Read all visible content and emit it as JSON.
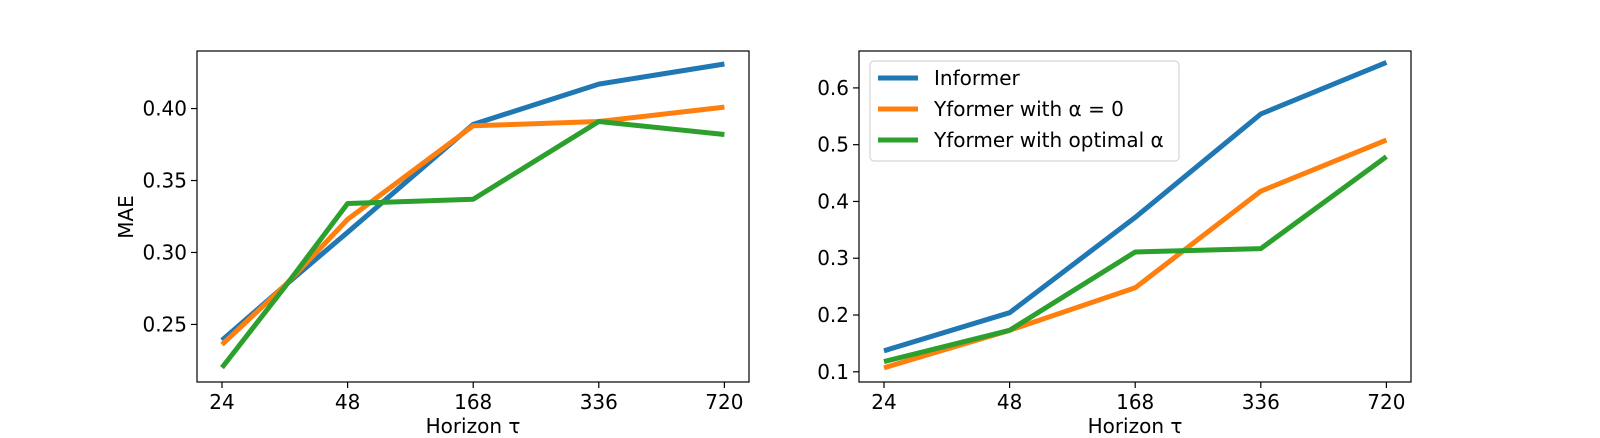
{
  "chart_data": [
    {
      "type": "line",
      "x": [
        "24",
        "48",
        "168",
        "336",
        "720"
      ],
      "xlabel": "Horizon τ",
      "ylabel": "MAE",
      "ylim": [
        0.21,
        0.44
      ],
      "yticks": [
        "0.25",
        "0.30",
        "0.35",
        "0.40"
      ],
      "ytick_values": [
        0.25,
        0.3,
        0.35,
        0.4
      ],
      "grid": false,
      "series": [
        {
          "key": "informer",
          "color": "#1f77b4",
          "points": [
            [
              0,
              0.239
            ],
            [
              0.5,
              0.277
            ],
            [
              1,
              0.314
            ],
            [
              2,
              0.389
            ],
            [
              3,
              0.417
            ],
            [
              4,
              0.431
            ]
          ]
        },
        {
          "key": "yformer-alpha0",
          "color": "#ff7f0e",
          "points": [
            [
              0,
              0.236
            ],
            [
              0.5,
              0.277
            ],
            [
              1,
              0.323
            ],
            [
              2,
              0.388
            ],
            [
              3,
              0.391
            ],
            [
              4,
              0.401
            ]
          ]
        },
        {
          "key": "yformer-optimal",
          "color": "#2ca02c",
          "points": [
            [
              0,
              0.22
            ],
            [
              0.5,
              0.276
            ],
            [
              1,
              0.334
            ],
            [
              2,
              0.337
            ],
            [
              3,
              0.391
            ],
            [
              4,
              0.382
            ]
          ]
        }
      ]
    },
    {
      "type": "line",
      "x": [
        "24",
        "48",
        "168",
        "336",
        "720"
      ],
      "xlabel": "Horizon τ",
      "ylabel": "",
      "ylim": [
        0.082,
        0.665
      ],
      "yticks": [
        "0.1",
        "0.2",
        "0.3",
        "0.4",
        "0.5",
        "0.6"
      ],
      "ytick_values": [
        0.1,
        0.2,
        0.3,
        0.4,
        0.5,
        0.6
      ],
      "grid": false,
      "legend_position": "top-left",
      "series": [
        {
          "key": "informer",
          "name": "Informer",
          "color": "#1f77b4",
          "points": [
            [
              0,
              0.137
            ],
            [
              1,
              0.204
            ],
            [
              2,
              0.372
            ],
            [
              3,
              0.554
            ],
            [
              4,
              0.645
            ]
          ]
        },
        {
          "key": "yformer-alpha0",
          "name": "Yformer with α = 0",
          "color": "#ff7f0e",
          "points": [
            [
              0,
              0.107
            ],
            [
              1,
              0.173
            ],
            [
              2,
              0.248
            ],
            [
              3,
              0.418
            ],
            [
              4,
              0.508
            ]
          ]
        },
        {
          "key": "yformer-optimal",
          "name": "Yformer with optimal α",
          "color": "#2ca02c",
          "points": [
            [
              0,
              0.118
            ],
            [
              1,
              0.173
            ],
            [
              2,
              0.311
            ],
            [
              3,
              0.317
            ],
            [
              4,
              0.479
            ]
          ]
        }
      ]
    }
  ]
}
